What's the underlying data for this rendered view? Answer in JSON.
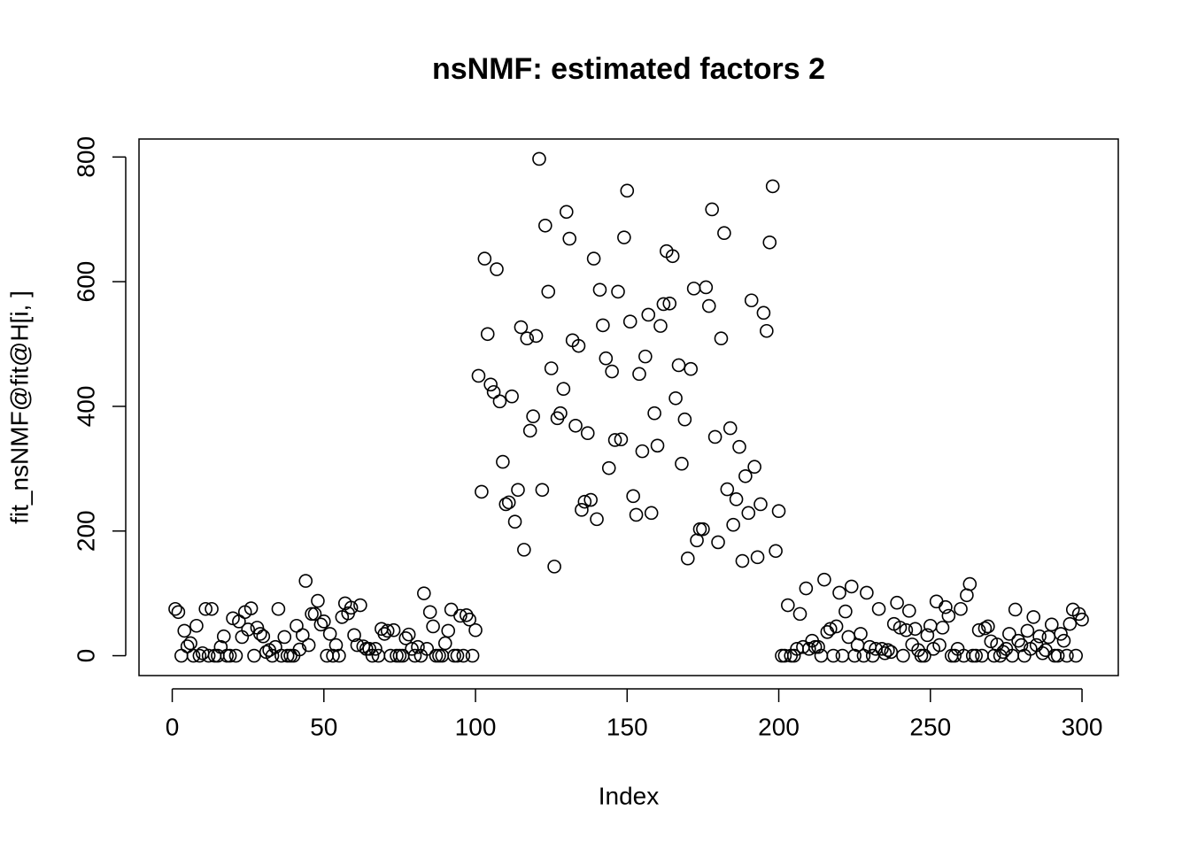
{
  "chart_data": {
    "type": "scatter",
    "title": "nsNMF: estimated factors 2",
    "x_label": "Index",
    "y_label": "fit_nsNMF@fit@H[i, ]",
    "xlim": [
      -10.96,
      311.96
    ],
    "ylim": [
      -31.88,
      828.88
    ],
    "xticks": [
      0,
      50,
      100,
      150,
      200,
      250,
      300
    ],
    "yticks": [
      0,
      200,
      400,
      600,
      800
    ],
    "x": [
      1,
      2,
      3,
      4,
      5,
      6,
      7,
      8,
      9,
      10,
      11,
      12,
      13,
      14,
      15,
      16,
      17,
      18,
      19,
      20,
      21,
      22,
      23,
      24,
      25,
      26,
      27,
      28,
      29,
      30,
      31,
      32,
      33,
      34,
      35,
      36,
      37,
      38,
      39,
      40,
      41,
      42,
      43,
      44,
      45,
      46,
      47,
      48,
      49,
      50,
      51,
      52,
      53,
      54,
      55,
      56,
      57,
      58,
      59,
      60,
      61,
      62,
      63,
      64,
      65,
      66,
      67,
      68,
      69,
      70,
      71,
      72,
      73,
      74,
      75,
      76,
      77,
      78,
      79,
      80,
      81,
      82,
      83,
      84,
      85,
      86,
      87,
      88,
      89,
      90,
      91,
      92,
      93,
      94,
      95,
      96,
      97,
      98,
      99,
      100,
      101,
      102,
      103,
      104,
      105,
      106,
      107,
      108,
      109,
      110,
      111,
      112,
      113,
      114,
      115,
      116,
      117,
      118,
      119,
      120,
      121,
      122,
      123,
      124,
      125,
      126,
      127,
      128,
      129,
      130,
      131,
      132,
      133,
      134,
      135,
      136,
      137,
      138,
      139,
      140,
      141,
      142,
      143,
      144,
      145,
      146,
      147,
      148,
      149,
      150,
      151,
      152,
      153,
      154,
      155,
      156,
      157,
      158,
      159,
      160,
      161,
      162,
      163,
      164,
      165,
      166,
      167,
      168,
      169,
      170,
      171,
      172,
      173,
      174,
      175,
      176,
      177,
      178,
      179,
      180,
      181,
      182,
      183,
      184,
      185,
      186,
      187,
      188,
      189,
      190,
      191,
      192,
      193,
      194,
      195,
      196,
      197,
      198,
      199,
      200,
      201,
      202,
      203,
      204,
      205,
      206,
      207,
      208,
      209,
      210,
      211,
      212,
      213,
      214,
      215,
      216,
      217,
      218,
      219,
      220,
      221,
      222,
      223,
      224,
      225,
      226,
      227,
      228,
      229,
      230,
      231,
      232,
      233,
      234,
      235,
      236,
      237,
      238,
      239,
      240,
      241,
      242,
      243,
      244,
      245,
      246,
      247,
      248,
      249,
      250,
      251,
      252,
      253,
      254,
      255,
      256,
      257,
      258,
      259,
      260,
      261,
      262,
      263,
      264,
      265,
      266,
      267,
      268,
      269,
      270,
      271,
      272,
      273,
      274,
      275,
      276,
      277,
      278,
      279,
      280,
      281,
      282,
      283,
      284,
      285,
      286,
      287,
      288,
      289,
      290,
      291,
      292,
      293,
      294,
      295,
      296,
      297,
      298,
      299,
      300
    ],
    "values": [
      75,
      70,
      0,
      40,
      15,
      20,
      0,
      48,
      0,
      4,
      75,
      0,
      75,
      0,
      0,
      14,
      31,
      0,
      0,
      60,
      0,
      55,
      30,
      70,
      42,
      76,
      0,
      45,
      35,
      31,
      6,
      9,
      0,
      14,
      75,
      0,
      30,
      0,
      0,
      0,
      48,
      10,
      33,
      120,
      17,
      67,
      67,
      88,
      50,
      55,
      0,
      35,
      0,
      17,
      0,
      62,
      84,
      68,
      77,
      33,
      17,
      81,
      15,
      11,
      11,
      0,
      11,
      0,
      43,
      35,
      40,
      0,
      41,
      0,
      0,
      0,
      28,
      34,
      11,
      0,
      14,
      0,
      100,
      11,
      70,
      47,
      0,
      0,
      0,
      20,
      40,
      74,
      0,
      0,
      64,
      0,
      65,
      58,
      0,
      41,
      449,
      263,
      637,
      516,
      435,
      423,
      620,
      408,
      311,
      243,
      246,
      416,
      215,
      266,
      527,
      170,
      509,
      361,
      384,
      513,
      797,
      266,
      690,
      584,
      461,
      143,
      381,
      389,
      428,
      712,
      669,
      506,
      369,
      497,
      234,
      247,
      357,
      250,
      637,
      219,
      587,
      530,
      477,
      301,
      456,
      346,
      584,
      347,
      671,
      746,
      536,
      256,
      226,
      452,
      328,
      480,
      547,
      229,
      389,
      337,
      529,
      564,
      649,
      565,
      641,
      413,
      466,
      308,
      379,
      156,
      460,
      589,
      185,
      203,
      203,
      591,
      561,
      716,
      351,
      182,
      509,
      678,
      267,
      365,
      210,
      251,
      335,
      152,
      288,
      229,
      570,
      303,
      158,
      243,
      550,
      521,
      663,
      753,
      168,
      232,
      0,
      0,
      81,
      0,
      0,
      11,
      67,
      14,
      108,
      11,
      24,
      14,
      14,
      0,
      122,
      38,
      43,
      0,
      47,
      101,
      0,
      71,
      30,
      111,
      0,
      17,
      35,
      0,
      101,
      14,
      0,
      11,
      75,
      11,
      4,
      9,
      6,
      51,
      85,
      45,
      0,
      41,
      72,
      18,
      43,
      9,
      0,
      0,
      33,
      48,
      11,
      87,
      17,
      45,
      78,
      64,
      0,
      0,
      11,
      75,
      0,
      97,
      115,
      0,
      0,
      41,
      0,
      44,
      47,
      23,
      0,
      18,
      0,
      6,
      11,
      35,
      0,
      74,
      24,
      17,
      0,
      40,
      11,
      62,
      17,
      31,
      4,
      9,
      30,
      50,
      0,
      0,
      35,
      24,
      0,
      51,
      74,
      0,
      67,
      58
    ]
  }
}
